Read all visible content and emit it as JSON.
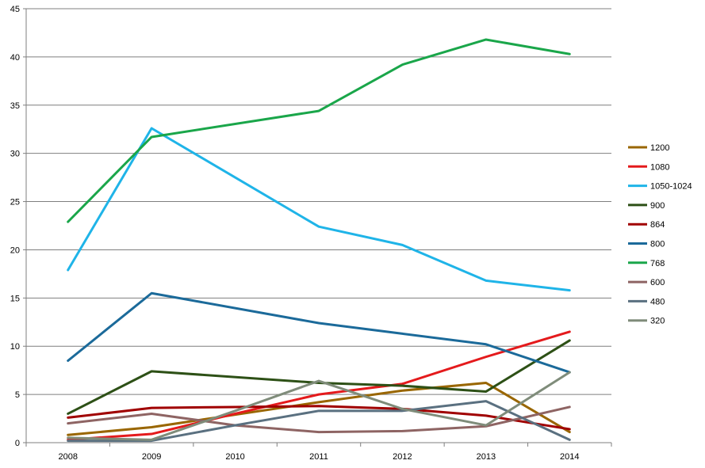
{
  "chart_data": {
    "type": "line",
    "title": "",
    "xlabel": "",
    "ylabel": "",
    "categories": [
      "2008",
      "2009",
      "2010",
      "2011",
      "2012",
      "2013",
      "2014"
    ],
    "ylim": [
      0,
      45
    ],
    "yticks": [
      0,
      5,
      10,
      15,
      20,
      25,
      30,
      35,
      40,
      45
    ],
    "grid": "horizontal",
    "legend_position": "right",
    "series": [
      {
        "name": "1200",
        "color": "#996600",
        "values": [
          0.8,
          1.6,
          2.9,
          4.2,
          5.4,
          6.2,
          1.1
        ]
      },
      {
        "name": "1080",
        "color": "#e41a1c",
        "values": [
          0.3,
          0.9,
          3.0,
          5.0,
          6.1,
          8.9,
          11.5
        ]
      },
      {
        "name": "1050-1024",
        "color": "#1fb4e8",
        "values": [
          17.9,
          32.6,
          null,
          22.4,
          20.5,
          16.8,
          15.8
        ]
      },
      {
        "name": "900",
        "color": "#2d5016",
        "values": [
          3.0,
          7.4,
          null,
          6.2,
          5.9,
          5.3,
          10.6
        ]
      },
      {
        "name": "864",
        "color": "#a00000",
        "values": [
          2.6,
          3.6,
          3.7,
          3.8,
          3.5,
          2.8,
          1.4
        ]
      },
      {
        "name": "800",
        "color": "#1b6a9a",
        "values": [
          8.5,
          15.5,
          null,
          12.4,
          11.3,
          10.2,
          7.3
        ]
      },
      {
        "name": "768",
        "color": "#1aa64a",
        "values": [
          22.9,
          31.7,
          null,
          34.4,
          39.2,
          41.8,
          40.3
        ]
      },
      {
        "name": "600",
        "color": "#8e6463",
        "values": [
          2.0,
          3.0,
          1.8,
          1.1,
          1.2,
          1.7,
          3.7
        ]
      },
      {
        "name": "480",
        "color": "#5a7080",
        "values": [
          0.2,
          0.2,
          1.8,
          3.3,
          3.3,
          4.3,
          0.3
        ]
      },
      {
        "name": "320",
        "color": "#7f8c7a",
        "values": [
          0.5,
          0.3,
          3.3,
          6.4,
          3.5,
          1.8,
          7.3
        ]
      }
    ]
  }
}
